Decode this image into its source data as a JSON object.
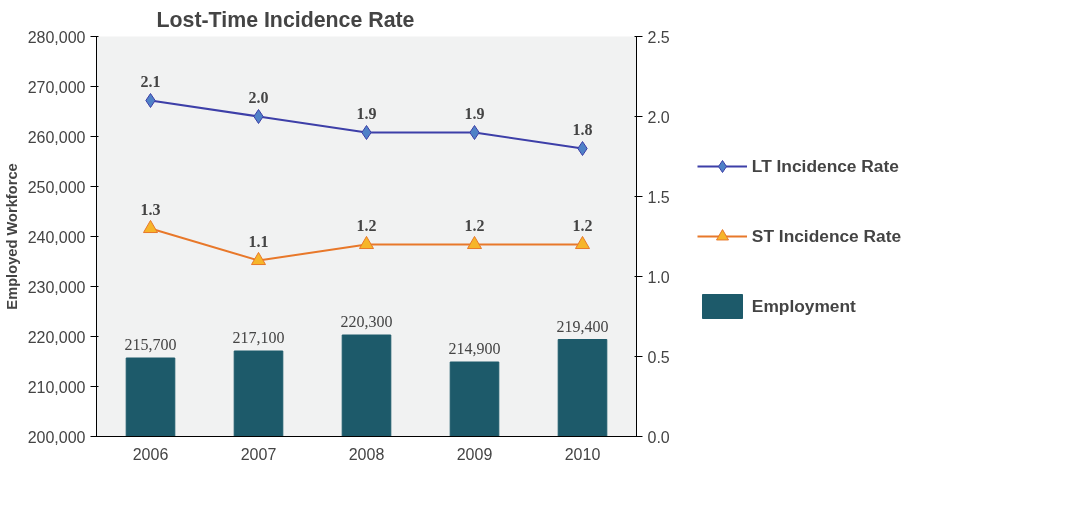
{
  "chart_data": {
    "type": "bar",
    "title": "Lost-Time Incidence Rate",
    "ylabel": "Employed Workforce",
    "categories": [
      "2006",
      "2007",
      "2008",
      "2009",
      "2010"
    ],
    "series": [
      {
        "name": "LT Incidence Rate",
        "type": "line",
        "axis": "y2",
        "color": "#3d3fa8",
        "marker": "diamond",
        "values": [
          2.1,
          2.0,
          1.9,
          1.9,
          1.8
        ],
        "value_labels": [
          "2.1",
          "2.0",
          "1.9",
          "1.9",
          "1.8"
        ]
      },
      {
        "name": "ST Incidence Rate",
        "type": "line",
        "axis": "y2",
        "color": "#e8782a",
        "marker": "triangle",
        "values": [
          1.3,
          1.1,
          1.2,
          1.2,
          1.2
        ],
        "value_labels": [
          "1.3",
          "1.1",
          "1.2",
          "1.2",
          "1.2"
        ]
      },
      {
        "name": "Employment",
        "color": "#1d5a6a",
        "values": [
          215700,
          217100,
          220300,
          214900,
          219400
        ],
        "value_labels": [
          "215,700",
          "217,100",
          "220,300",
          "214,900",
          "219,400"
        ]
      }
    ],
    "ylim": [
      200000,
      280000
    ],
    "yticks": [
      {
        "value": 200000,
        "label": "200,000"
      },
      {
        "value": 210000,
        "label": "210,000"
      },
      {
        "value": 220000,
        "label": "220,000"
      },
      {
        "value": 230000,
        "label": "230,000"
      },
      {
        "value": 240000,
        "label": "240,000"
      },
      {
        "value": 250000,
        "label": "250,000"
      },
      {
        "value": 260000,
        "label": "260,000"
      },
      {
        "value": 270000,
        "label": "270,000"
      },
      {
        "value": 280000,
        "label": "280,000"
      }
    ],
    "y2lim": [
      0,
      2.5
    ],
    "y2ticks": [
      {
        "value": 0,
        "label": "0.0"
      },
      0.5,
      {
        "value": 1,
        "label": "1.0"
      },
      1.5,
      {
        "value": 2,
        "label": "2.0"
      },
      2.5
    ],
    "legend": "right",
    "line_style": "solid"
  }
}
